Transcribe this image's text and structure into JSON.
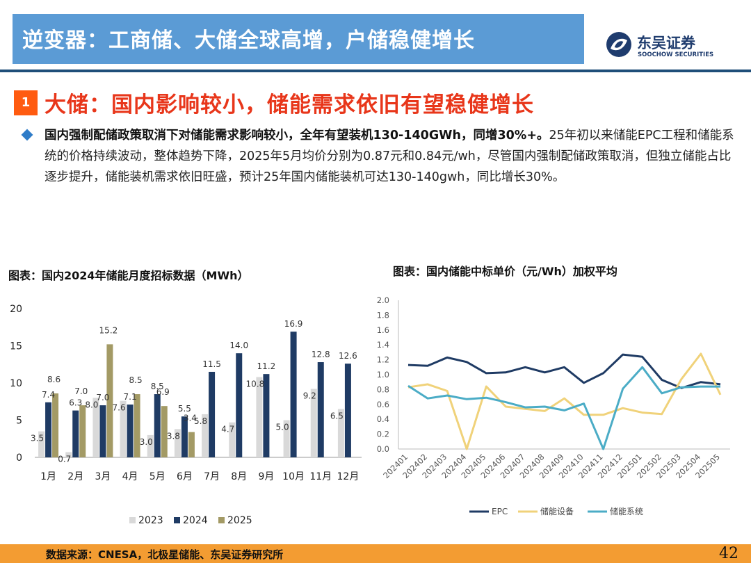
{
  "header": {
    "title": "逆变器：工商储、大储全球高增，户储稳健增长",
    "logo_cn": "东吴证券",
    "logo_en": "SOOCHOW SECURITIES"
  },
  "section": {
    "badge": "1",
    "title": "大储：国内影响较小，储能需求依旧有望稳健增长"
  },
  "paragraph": {
    "bold": "国内强制配储政策取消下对储能需求影响较小，全年有望装机130-140GWh，同增30%+。",
    "rest": "25年初以来储能EPC工程和储能系统的价格持续波动，整体趋势下降，2025年5月均价分别为0.87元和0.84元/wh，尽管国内强制配储政策取消，但独立储能占比逐步提升，储能装机需求依旧旺盛，预计25年国内储能装机可达130-140gwh，同比增长30%。"
  },
  "chart_left_title": "图表：国内2024年储能月度招标数据（MWh）",
  "chart_right_title": "图表：国内储能中标单价（元/Wh）加权平均",
  "chart_data": [
    {
      "type": "bar",
      "ylim": [
        0,
        20
      ],
      "yticks": [
        0,
        5,
        10,
        15,
        20
      ],
      "categories": [
        "1月",
        "2月",
        "3月",
        "4月",
        "5月",
        "6月",
        "7月",
        "8月",
        "9月",
        "10月",
        "11月",
        "12月"
      ],
      "series": [
        {
          "name": "2023",
          "color": "#d9d9d9",
          "values": [
            3.5,
            0.7,
            8.0,
            7.6,
            3.0,
            3.8,
            5.8,
            4.7,
            10.8,
            5.0,
            9.2,
            6.5
          ]
        },
        {
          "name": "2024",
          "color": "#1f3b64",
          "values": [
            7.4,
            6.3,
            7.0,
            7.1,
            8.5,
            5.5,
            11.5,
            14.0,
            11.2,
            16.9,
            12.8,
            12.6
          ]
        },
        {
          "name": "2025",
          "color": "#a39a65",
          "values": [
            8.6,
            7.0,
            15.2,
            8.5,
            6.9,
            3.4,
            null,
            null,
            null,
            null,
            null,
            null
          ]
        }
      ],
      "labels": [
        [
          "3.5",
          "0.7",
          "8.0",
          "7.6",
          "3.0",
          "3.8",
          "5.8",
          "4.7",
          "10.8",
          "5.0",
          "9.2",
          "6.5"
        ],
        [
          "7.4",
          "6.3",
          "7.0",
          "7.1",
          "8.5",
          "5.5",
          "11.5",
          "14.0",
          "11.2",
          "16.9",
          "12.8",
          "12.6"
        ],
        [
          "8.6",
          "7.0",
          "15.2",
          "8.5",
          "6.9",
          "3.4",
          "",
          "",
          "",
          "",
          "",
          ""
        ]
      ],
      "legend_position": "bottom"
    },
    {
      "type": "line",
      "ylim": [
        0,
        2.0
      ],
      "yticks": [
        "0.0",
        "0.2",
        "0.4",
        "0.6",
        "0.8",
        "1.0",
        "1.2",
        "1.4",
        "1.6",
        "1.8",
        "2.0"
      ],
      "x": [
        "202401",
        "202402",
        "202403",
        "202404",
        "202405",
        "202406",
        "202407",
        "202408",
        "202409",
        "202410",
        "202411",
        "202412",
        "202501",
        "202502",
        "202503",
        "202504",
        "202505"
      ],
      "series": [
        {
          "name": "EPC",
          "color": "#1f3b64",
          "values": [
            1.13,
            1.12,
            1.23,
            1.17,
            1.02,
            1.03,
            1.1,
            1.03,
            1.1,
            0.89,
            1.02,
            1.27,
            1.24,
            0.93,
            0.82,
            0.9,
            0.87
          ]
        },
        {
          "name": "储能设备",
          "color": "#f0d27a",
          "values": [
            0.83,
            0.87,
            0.78,
            0.0,
            0.84,
            0.57,
            0.54,
            0.51,
            0.68,
            0.46,
            0.46,
            0.55,
            0.49,
            0.47,
            0.94,
            1.28,
            0.73
          ]
        },
        {
          "name": "储能系统",
          "color": "#4bacc6",
          "values": [
            0.85,
            0.68,
            0.72,
            0.67,
            0.69,
            0.63,
            0.56,
            0.57,
            0.52,
            0.61,
            0.0,
            0.81,
            1.1,
            0.75,
            0.83,
            0.84,
            0.84
          ]
        }
      ],
      "legend_position": "bottom"
    }
  ],
  "footer": {
    "source": "数据来源：CNESA，北极星储能、东吴证券研究所",
    "page": "42"
  }
}
